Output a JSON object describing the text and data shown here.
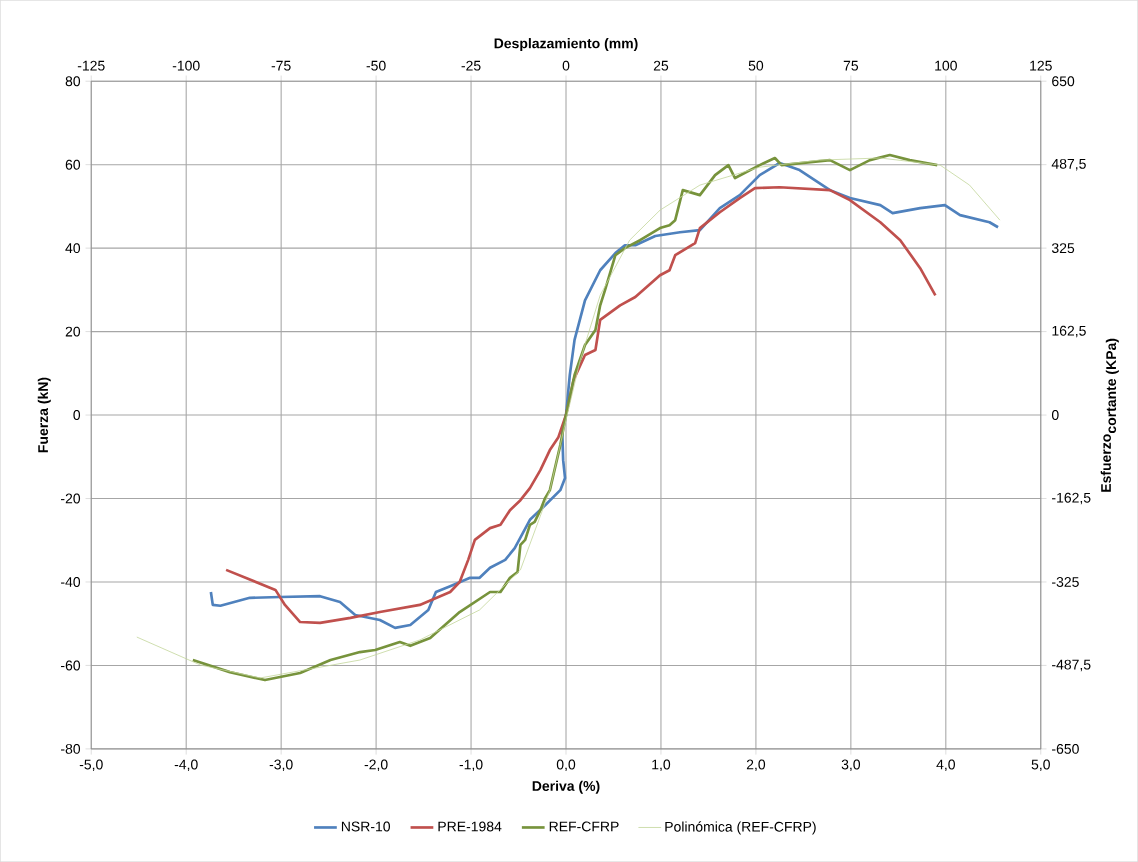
{
  "chart_data": {
    "type": "line",
    "xlabel": "Deriva (%)",
    "ylabel": "Fuerza (kN)",
    "x2label": "Desplazamiento (mm)",
    "y2label": "\\textbf{Esfuerzo}_{\\textbf{cortante (KPa)}}",
    "xlim": [
      -5,
      5
    ],
    "xticks": [
      {
        "value": -5,
        "label": "-5,0"
      },
      {
        "value": -4,
        "label": "-4,0"
      },
      {
        "value": -3,
        "label": "-3,0"
      },
      {
        "value": -2,
        "label": "-2,0"
      },
      {
        "value": -1,
        "label": "-1,0"
      },
      {
        "value": 0,
        "label": "0,0"
      },
      {
        "value": 1,
        "label": "1,0"
      },
      {
        "value": 2,
        "label": "2,0"
      },
      {
        "value": 3,
        "label": "3,0"
      },
      {
        "value": 4,
        "label": "4,0"
      },
      {
        "value": 5,
        "label": "5,0"
      }
    ],
    "ylim": [
      -80,
      80
    ],
    "yticks": [
      -80,
      -60,
      -40,
      -20,
      0,
      20,
      40,
      60,
      80
    ],
    "x2lim": [
      -125,
      125
    ],
    "x2ticks": [
      -125,
      -100,
      -75,
      -50,
      -25,
      0,
      25,
      50,
      75,
      100,
      125
    ],
    "y2lim": [
      -650,
      650
    ],
    "y2ticks": [
      -650,
      {
        "value": -487.5,
        "label": "-487,5"
      },
      -325,
      {
        "value": -162.5,
        "label": "-162,5"
      },
      0,
      {
        "value": 162.5,
        "label": "162,5"
      },
      325,
      {
        "value": 487.5,
        "label": "487,5"
      },
      650
    ],
    "grid": true,
    "legend": "bottom",
    "marker": "none",
    "series": [
      {
        "name": "NSR-10",
        "color": "#4f81bd",
        "x": [
          -3.74,
          -3.72,
          -3.64,
          -3.33,
          -3.01,
          -2.59,
          -2.38,
          -2.22,
          -1.96,
          -1.8,
          -1.64,
          -1.45,
          -1.37,
          -1.22,
          -1.01,
          -0.91,
          -0.8,
          -0.64,
          -0.54,
          -0.38,
          -0.22,
          -0.06,
          -0.01,
          -0.03,
          -0.04,
          0,
          0.04,
          0.09,
          0.2,
          0.36,
          0.52,
          0.62,
          0.73,
          0.94,
          1.2,
          1.41,
          1.62,
          1.83,
          2.04,
          2.25,
          2.46,
          2.78,
          2.99,
          3.31,
          3.44,
          3.73,
          3.99,
          4.15,
          4.46,
          4.55
        ],
        "values": [
          -42.4,
          -45.5,
          -45.7,
          -43.8,
          -43.6,
          -43.4,
          -44.8,
          -47.9,
          -49.1,
          -51,
          -50.3,
          -46.7,
          -42.4,
          -41,
          -39,
          -39,
          -36.6,
          -34.7,
          -31.9,
          -25.1,
          -21.6,
          -18,
          -15.1,
          -10.8,
          -3.6,
          0,
          9.6,
          18,
          27.5,
          34.7,
          38.8,
          40.7,
          40.7,
          42.9,
          43.8,
          44.3,
          49.6,
          52.7,
          57.5,
          60.4,
          58.7,
          53.9,
          52,
          50.3,
          48.4,
          49.6,
          50.3,
          47.9,
          46.2,
          45
        ]
      },
      {
        "name": "PRE-1984",
        "color": "#c0504d",
        "x": [
          -3.58,
          -3.06,
          -2.96,
          -2.8,
          -2.59,
          -2.27,
          -1.96,
          -1.54,
          -1.22,
          -1.12,
          -1.03,
          -0.96,
          -0.8,
          -0.69,
          -0.59,
          -0.48,
          -0.38,
          -0.27,
          -0.17,
          -0.08,
          0,
          0.08,
          0.2,
          0.31,
          0.36,
          0.57,
          0.73,
          0.99,
          1.09,
          1.15,
          1.36,
          1.41,
          1.62,
          1.83,
          1.99,
          2.25,
          2.78,
          2.99,
          3.31,
          3.52,
          3.73,
          3.89
        ],
        "values": [
          -37.1,
          -41.9,
          -45.5,
          -49.6,
          -49.8,
          -48.6,
          -47.2,
          -45.5,
          -42.4,
          -40,
          -34.7,
          -29.9,
          -27.1,
          -26.3,
          -22.8,
          -20.4,
          -17.5,
          -13.2,
          -8.4,
          -5.3,
          0,
          8.4,
          14.4,
          15.6,
          22.8,
          26.3,
          28.3,
          33.5,
          34.7,
          38.3,
          41.2,
          44.8,
          48.6,
          52,
          54.4,
          54.6,
          53.9,
          51.5,
          46.2,
          41.9,
          35.2,
          28.7
        ]
      },
      {
        "name": "REF-CFRP",
        "color": "#77933c",
        "x": [
          -3.93,
          -3.54,
          -3.17,
          -2.8,
          -2.48,
          -2.17,
          -2.01,
          -1.75,
          -1.64,
          -1.43,
          -1.12,
          -0.8,
          -0.69,
          -0.59,
          -0.51,
          -0.48,
          -0.43,
          -0.38,
          -0.33,
          -0.27,
          -0.22,
          -0.17,
          -0.06,
          0,
          0.09,
          0.2,
          0.31,
          0.36,
          0.41,
          0.52,
          0.62,
          0.78,
          0.99,
          1.09,
          1.15,
          1.23,
          1.41,
          1.57,
          1.71,
          1.78,
          2.04,
          2.2,
          2.27,
          2.78,
          2.99,
          3.2,
          3.41,
          3.62,
          3.91
        ],
        "values": [
          -58.7,
          -61.6,
          -63.5,
          -61.8,
          -58.7,
          -56.8,
          -56.3,
          -54.4,
          -55.3,
          -53.4,
          -47.2,
          -42.4,
          -42.4,
          -39,
          -37.6,
          -31.1,
          -29.9,
          -26.3,
          -25.6,
          -22.8,
          -19.9,
          -18,
          -7.2,
          0,
          9.6,
          16.8,
          20.4,
          26.3,
          29.9,
          38.3,
          40,
          41.9,
          44.8,
          45.5,
          46.7,
          53.9,
          52.7,
          57.5,
          59.9,
          56.8,
          59.9,
          61.6,
          59.9,
          61.1,
          58.7,
          61.1,
          62.3,
          61.1,
          59.9
        ]
      },
      {
        "name": "Polinómica (REF-CFRP)",
        "color": "#c3d69b",
        "x": [
          -4.52,
          -3.85,
          -3.22,
          -2.17,
          -1.54,
          -0.91,
          -0.48,
          -0.17,
          0,
          0.15,
          0.36,
          0.67,
          0.99,
          1.41,
          2.04,
          2.67,
          3.31,
          3.94,
          4.25,
          4.57
        ],
        "values": [
          -53.2,
          -59.9,
          -63,
          -58.7,
          -53.9,
          -46.7,
          -37.1,
          -18,
          -1.2,
          13.2,
          28.7,
          41.9,
          49.1,
          55.1,
          59.4,
          61.1,
          61.6,
          59.9,
          55.1,
          46.7
        ]
      }
    ]
  }
}
